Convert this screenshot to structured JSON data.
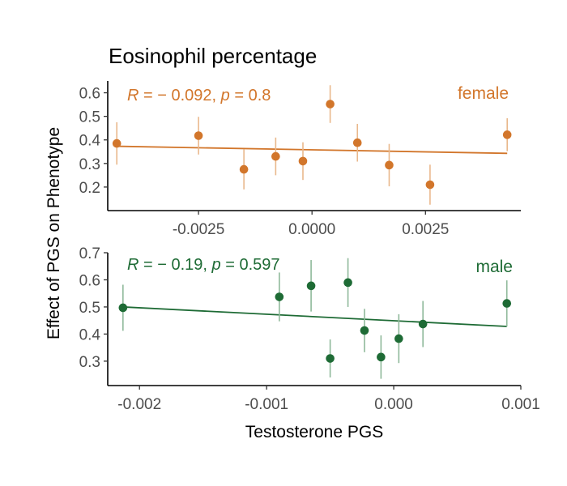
{
  "chart_data": {
    "type": "scatter",
    "title": "Eosinophil percentage",
    "xlabel": "Testosterone PGS",
    "ylabel": "Effect of PGS on Phenotype",
    "grid": false,
    "legend": "none",
    "panels": [
      {
        "label": "female",
        "color": "#D2762B",
        "errorbar_color": "#E9B88C",
        "corr_r": "− 0.092",
        "corr_p": "0.8",
        "xlim": [
          -0.0045,
          0.0046
        ],
        "ylim": [
          0.1,
          0.65
        ],
        "xticks": [
          -0.0025,
          0.0,
          0.0025
        ],
        "xtick_labels": [
          "-0.0025",
          "0.0000",
          "0.0025"
        ],
        "yticks": [
          0.2,
          0.3,
          0.4,
          0.5,
          0.6
        ],
        "ytick_labels": [
          "0.2",
          "0.3",
          "0.4",
          "0.5",
          "0.6"
        ],
        "points": [
          {
            "x": -0.0043,
            "y": 0.385,
            "lo": 0.295,
            "hi": 0.475
          },
          {
            "x": -0.0025,
            "y": 0.418,
            "lo": 0.338,
            "hi": 0.498
          },
          {
            "x": -0.0015,
            "y": 0.275,
            "lo": 0.19,
            "hi": 0.36
          },
          {
            "x": -0.0008,
            "y": 0.33,
            "lo": 0.25,
            "hi": 0.41
          },
          {
            "x": -0.0002,
            "y": 0.31,
            "lo": 0.23,
            "hi": 0.39
          },
          {
            "x": 0.0004,
            "y": 0.552,
            "lo": 0.472,
            "hi": 0.632
          },
          {
            "x": 0.001,
            "y": 0.388,
            "lo": 0.308,
            "hi": 0.468
          },
          {
            "x": 0.0017,
            "y": 0.293,
            "lo": 0.203,
            "hi": 0.383
          },
          {
            "x": 0.0026,
            "y": 0.21,
            "lo": 0.125,
            "hi": 0.295
          },
          {
            "x": 0.0043,
            "y": 0.422,
            "lo": 0.352,
            "hi": 0.492
          }
        ],
        "fit": {
          "x": [
            -0.0043,
            0.0043
          ],
          "y": [
            0.373,
            0.343
          ]
        }
      },
      {
        "label": "male",
        "color": "#1E6B35",
        "errorbar_color": "#8FB99A",
        "corr_r": "− 0.19",
        "corr_p": "0.597",
        "xlim": [
          -0.00225,
          0.001
        ],
        "ylim": [
          0.21,
          0.7
        ],
        "xticks": [
          -0.002,
          -0.001,
          0.0,
          0.001
        ],
        "xtick_labels": [
          "-0.002",
          "-0.001",
          "0.000",
          "0.001"
        ],
        "yticks": [
          0.3,
          0.4,
          0.5,
          0.6,
          0.7
        ],
        "ytick_labels": [
          "0.3",
          "0.4",
          "0.5",
          "0.6",
          "0.7"
        ],
        "points": [
          {
            "x": -0.00213,
            "y": 0.497,
            "lo": 0.412,
            "hi": 0.582
          },
          {
            "x": -0.0009,
            "y": 0.537,
            "lo": 0.447,
            "hi": 0.627
          },
          {
            "x": -0.00065,
            "y": 0.578,
            "lo": 0.483,
            "hi": 0.673
          },
          {
            "x": -0.0005,
            "y": 0.31,
            "lo": 0.24,
            "hi": 0.38
          },
          {
            "x": -0.00036,
            "y": 0.59,
            "lo": 0.5,
            "hi": 0.68
          },
          {
            "x": -0.00023,
            "y": 0.413,
            "lo": 0.333,
            "hi": 0.493
          },
          {
            "x": -0.0001,
            "y": 0.315,
            "lo": 0.235,
            "hi": 0.395
          },
          {
            "x": 4e-05,
            "y": 0.383,
            "lo": 0.293,
            "hi": 0.473
          },
          {
            "x": 0.00023,
            "y": 0.437,
            "lo": 0.352,
            "hi": 0.522
          },
          {
            "x": 0.00089,
            "y": 0.513,
            "lo": 0.428,
            "hi": 0.598
          }
        ],
        "fit": {
          "x": [
            -0.00213,
            0.00089
          ],
          "y": [
            0.5,
            0.428
          ]
        }
      }
    ]
  }
}
